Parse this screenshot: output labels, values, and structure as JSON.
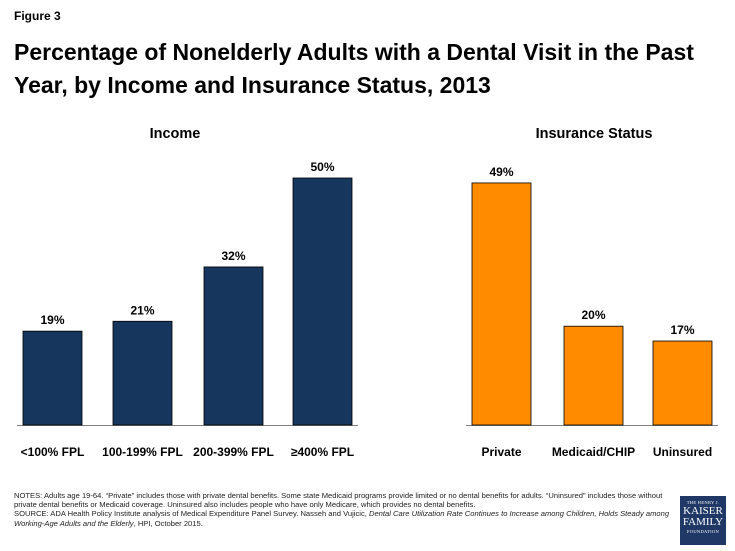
{
  "figure_label": "Figure 3",
  "title": "Percentage of Nonelderly Adults with a Dental Visit in the Past Year, by Income and Insurance Status, 2013",
  "colors": {
    "income": "#17365d",
    "insurance": "#ff8c00",
    "baseline": "#808080"
  },
  "chart_data": {
    "type": "bar",
    "title": "Percentage of Nonelderly Adults with a Dental Visit in the Past Year, by Income and Insurance Status, 2013",
    "ylim": [
      0,
      55
    ],
    "groups": [
      {
        "name": "Income",
        "categories": [
          "<100% FPL",
          "100-199% FPL",
          "200-399% FPL",
          "≥400% FPL"
        ],
        "values": [
          19,
          21,
          32,
          50
        ],
        "labels": [
          "19%",
          "21%",
          "32%",
          "50%"
        ]
      },
      {
        "name": "Insurance Status",
        "categories": [
          "Private",
          "Medicaid/CHIP",
          "Uninsured"
        ],
        "values": [
          49,
          20,
          17
        ],
        "labels": [
          "49%",
          "20%",
          "17%"
        ]
      }
    ]
  },
  "notes": {
    "line1": "NOTES: Adults age 19-64. “Private” includes  those with private dental benefits. Some state Medicaid programs provide limited or no dental benefits for adults. “Uninsured” includes those without private dental benefits or Medicaid coverage. Uninsured also includes people who have only Medicare, which provides no dental benefits.",
    "source_prefix": "SOURCE: ADA Health Policy Institute analysis of Medical Expenditure Panel Survey. Nasseh and Vujicic, ",
    "source_title": "Dental Care Utilization Rate Continues to Increase among Children, Holds Steady among Working-Age Adults and the Elderly",
    "source_suffix": ", HPI, October 2015."
  },
  "logo": {
    "line1": "THE HENRY J.",
    "line2": "KAISER",
    "line3": "FAMILY",
    "line4": "FOUNDATION"
  }
}
